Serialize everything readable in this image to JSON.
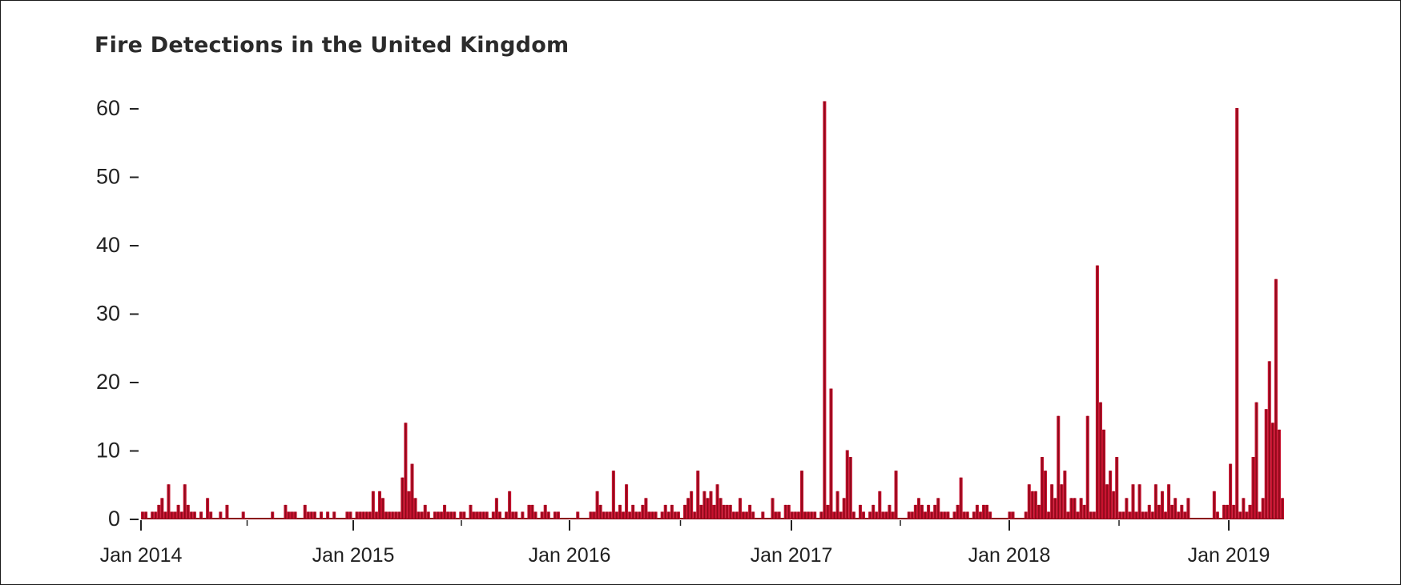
{
  "chart_data": {
    "type": "bar",
    "title": "Fire Detections in the United Kingdom",
    "xlabel": "",
    "ylabel": "",
    "ylim": [
      0,
      62
    ],
    "yticks": [
      0,
      10,
      20,
      30,
      40,
      50,
      60
    ],
    "xticks": [
      "Jan 2014",
      "Jan 2015",
      "Jan 2016",
      "Jan 2017",
      "Jan 2018",
      "Jan 2019"
    ],
    "grid": false,
    "legend": null,
    "bar_color": "#c8102e",
    "bar_edge_color": "#8b0a1a",
    "interval": "weekly",
    "start": "Jan 2014",
    "series": [
      {
        "name": "Fire detections",
        "values": [
          1,
          1,
          0,
          1,
          1,
          2,
          3,
          1,
          5,
          1,
          1,
          2,
          1,
          5,
          2,
          1,
          1,
          0,
          1,
          0,
          3,
          1,
          0,
          0,
          1,
          0,
          2,
          0,
          0,
          0,
          0,
          1,
          0,
          0,
          0,
          0,
          0,
          0,
          0,
          0,
          1,
          0,
          0,
          0,
          2,
          1,
          1,
          1,
          0,
          0,
          2,
          1,
          1,
          1,
          0,
          1,
          0,
          1,
          0,
          1,
          0,
          0,
          0,
          1,
          1,
          0,
          1,
          1,
          1,
          1,
          1,
          4,
          1,
          4,
          3,
          1,
          1,
          1,
          1,
          1,
          6,
          14,
          4,
          8,
          3,
          1,
          1,
          2,
          1,
          0,
          1,
          1,
          1,
          2,
          1,
          1,
          1,
          0,
          1,
          1,
          0,
          2,
          1,
          1,
          1,
          1,
          1,
          0,
          1,
          3,
          1,
          0,
          1,
          4,
          1,
          1,
          0,
          1,
          0,
          2,
          2,
          1,
          0,
          1,
          2,
          1,
          0,
          1,
          1,
          0,
          0,
          0,
          0,
          0,
          1,
          0,
          0,
          0,
          1,
          1,
          4,
          2,
          1,
          1,
          1,
          7,
          1,
          2,
          1,
          5,
          1,
          2,
          1,
          1,
          2,
          3,
          1,
          1,
          1,
          0,
          1,
          2,
          1,
          2,
          1,
          1,
          0,
          2,
          3,
          4,
          1,
          7,
          2,
          4,
          3,
          4,
          2,
          5,
          3,
          2,
          2,
          2,
          1,
          1,
          3,
          1,
          1,
          2,
          1,
          0,
          0,
          1,
          0,
          0,
          3,
          1,
          1,
          0,
          2,
          2,
          1,
          1,
          1,
          7,
          1,
          1,
          1,
          1,
          0,
          1,
          61,
          2,
          19,
          1,
          4,
          1,
          3,
          10,
          9,
          1,
          0,
          2,
          1,
          0,
          1,
          2,
          1,
          4,
          1,
          1,
          2,
          1,
          7,
          0,
          0,
          0,
          1,
          1,
          2,
          3,
          2,
          1,
          2,
          1,
          2,
          3,
          1,
          1,
          1,
          0,
          1,
          2,
          6,
          1,
          1,
          0,
          1,
          2,
          1,
          2,
          2,
          1,
          0,
          0,
          0,
          0,
          0,
          1,
          1,
          0,
          0,
          0,
          1,
          5,
          4,
          4,
          2,
          9,
          7,
          1,
          5,
          3,
          15,
          5,
          7,
          1,
          3,
          3,
          1,
          3,
          2,
          15,
          1,
          1,
          37,
          17,
          13,
          5,
          7,
          4,
          9,
          1,
          1,
          3,
          1,
          5,
          1,
          5,
          1,
          1,
          2,
          1,
          5,
          2,
          4,
          1,
          5,
          2,
          3,
          1,
          2,
          1,
          3,
          0,
          0,
          0,
          0,
          0,
          0,
          0,
          4,
          1,
          0,
          2,
          2,
          8,
          2,
          60,
          1,
          3,
          1,
          2,
          9,
          17,
          1,
          3,
          16,
          23,
          14,
          35,
          13,
          3
        ]
      }
    ]
  }
}
